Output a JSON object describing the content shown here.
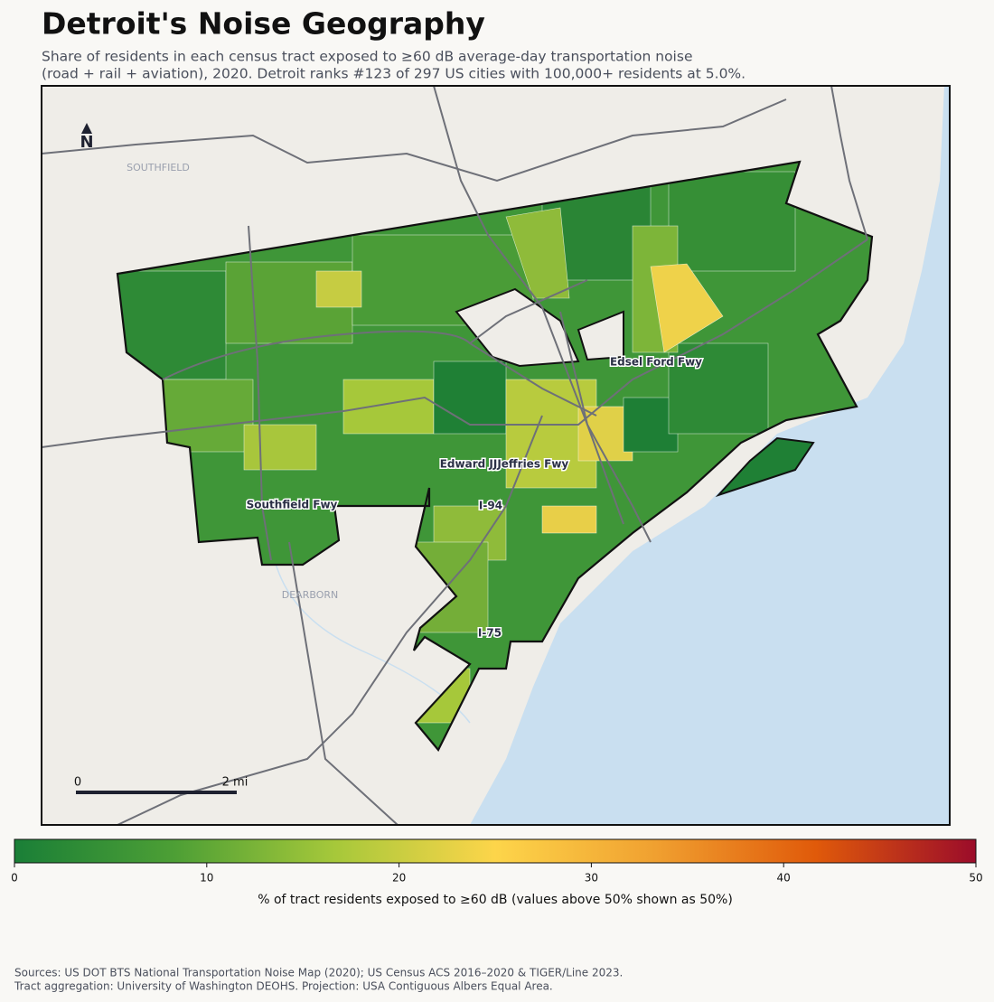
{
  "title": "Detroit's Noise Geography",
  "subtitle": [
    "Share of residents in each census tract exposed to ≥60 dB average-day transportation noise",
    "(road + rail + aviation), 2020. Detroit ranks #123 of 297 US cities with 100,000+ residents at 5.0%."
  ],
  "map": {
    "north_label": "N",
    "place_labels": [
      "SOUTHFIELD",
      "DEARBORN"
    ],
    "road_labels": [
      "Edsel Ford Fwy",
      "Edward JJJeffries Fwy",
      "I-94",
      "Southfield Fwy",
      "I-75"
    ],
    "scale_bar": [
      "0",
      "2 mi"
    ]
  },
  "colorbar": {
    "lim": [
      0,
      50
    ],
    "ticks": [
      0,
      10,
      20,
      30,
      40,
      50
    ],
    "label": "% of tract residents exposed to ≥60 dB (values above 50% shown as 50%)",
    "colors": [
      "#1a7f37",
      "#4d9f35",
      "#a6c83a",
      "#fdd54a",
      "#f0a030",
      "#e05a0a",
      "#9b0c2a"
    ]
  },
  "sources": [
    "Sources: US DOT BTS National Transportation Noise Map (2020); US Census ACS 2016–2020 & TIGER/Line 2023.",
    "Tract aggregation: University of Washington DEOHS. Projection: USA Contiguous Albers Equal Area."
  ]
}
